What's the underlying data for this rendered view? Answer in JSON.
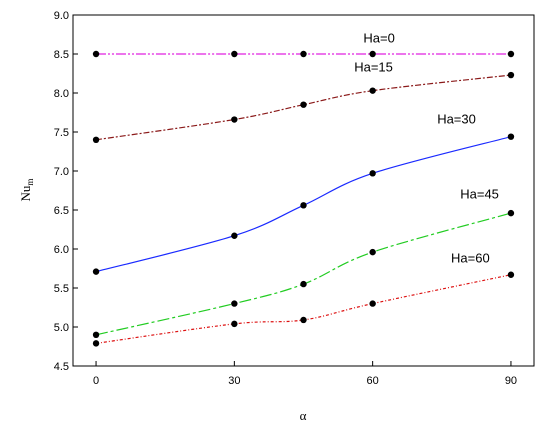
{
  "chart_data": {
    "type": "line",
    "xlabel": "α",
    "ylabel": "Nu",
    "ylabel_sub": "m",
    "xlim": [
      -5,
      95
    ],
    "ylim": [
      4.5,
      9.0
    ],
    "x": [
      0,
      30,
      45,
      60,
      90
    ],
    "xticks": [
      0,
      30,
      60,
      90
    ],
    "yticks": [
      4.5,
      5.0,
      5.5,
      6.0,
      6.5,
      7.0,
      7.5,
      8.0,
      8.5,
      9.0
    ],
    "grid": false,
    "series": [
      {
        "name": "Ha=0",
        "values": [
          8.5,
          8.5,
          8.5,
          8.5,
          8.5
        ],
        "color": "#e020e0",
        "dash": "10 2 2 2 2 2"
      },
      {
        "name": "Ha=15",
        "values": [
          7.4,
          7.66,
          7.85,
          8.03,
          8.23
        ],
        "color": "#8b1a1a",
        "dash": "6 2 2 2"
      },
      {
        "name": "Ha=30",
        "values": [
          5.71,
          6.17,
          6.56,
          6.97,
          7.44
        ],
        "color": "#1a2aff",
        "dash": ""
      },
      {
        "name": "Ha=45",
        "values": [
          4.9,
          5.3,
          5.55,
          5.96,
          6.46
        ],
        "color": "#22cc22",
        "dash": "12 3 3 3"
      },
      {
        "name": "Ha=60",
        "values": [
          4.79,
          5.04,
          5.09,
          5.3,
          5.67
        ],
        "color": "#dd1111",
        "dash": "3 2 1 2"
      }
    ],
    "marker_color": "#000000"
  }
}
